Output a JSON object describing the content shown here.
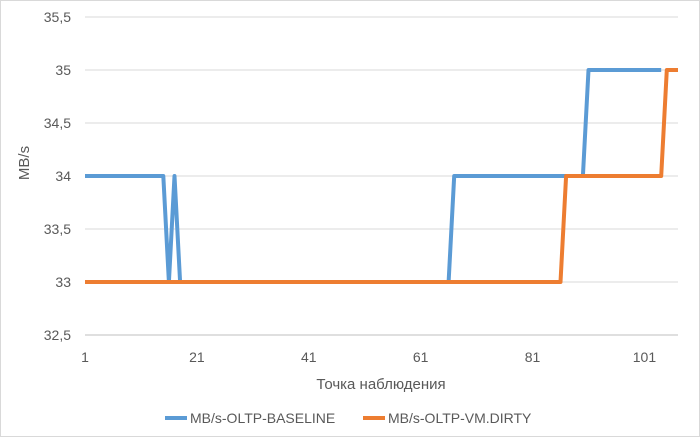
{
  "chart_data": {
    "type": "line",
    "title": "",
    "xlabel": "Точка наблюдения",
    "ylabel": "MB/s",
    "ylim": [
      32.5,
      35.5
    ],
    "xlim": [
      1,
      107
    ],
    "y_ticks": [
      32.5,
      33,
      33.5,
      34,
      34.5,
      35,
      35.5
    ],
    "y_tick_labels": [
      "32,5",
      "33",
      "33,5",
      "34",
      "34,5",
      "35",
      "35,5"
    ],
    "x_ticks": [
      1,
      21,
      41,
      61,
      81,
      101
    ],
    "x_tick_labels": [
      "1",
      "21",
      "41",
      "61",
      "81",
      "101"
    ],
    "grid": "horizontal",
    "legend_position": "bottom",
    "series": [
      {
        "name": "MB/s-OLTP-BASELINE",
        "color": "#5B9BD5",
        "points": [
          [
            1,
            34
          ],
          [
            15,
            34
          ],
          [
            16,
            33
          ],
          [
            17,
            34
          ],
          [
            18,
            33
          ],
          [
            66,
            33
          ],
          [
            67,
            34
          ],
          [
            90,
            34
          ],
          [
            91,
            35
          ],
          [
            104,
            35
          ]
        ]
      },
      {
        "name": "MB/s-OLTP-VM.DIRTY",
        "color": "#ED7D31",
        "points": [
          [
            1,
            33
          ],
          [
            86,
            33
          ],
          [
            87,
            34
          ],
          [
            104,
            34
          ],
          [
            105,
            35
          ],
          [
            107,
            35
          ]
        ]
      }
    ]
  }
}
